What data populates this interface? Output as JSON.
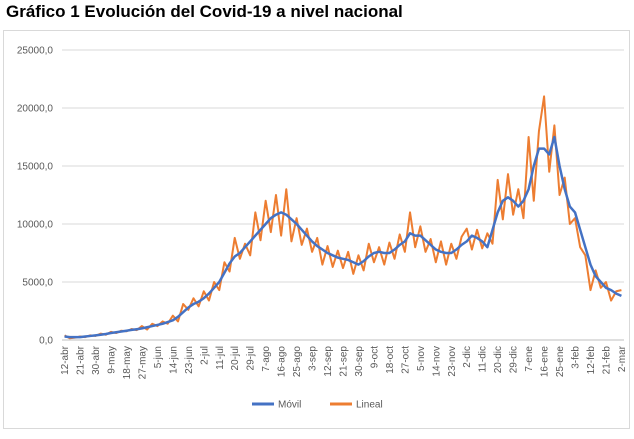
{
  "chart_data": {
    "type": "line",
    "title": "Gráfico 1 Evolución del Covid-19 a nivel nacional",
    "categories": [
      "12-abr",
      null,
      null,
      "21-abr",
      null,
      null,
      "30-abr",
      null,
      null,
      "9-may",
      null,
      null,
      "18-may",
      null,
      null,
      "27-may",
      null,
      null,
      "5-jun",
      null,
      null,
      "14-jun",
      null,
      null,
      "23-jun",
      null,
      null,
      "2-jul",
      null,
      null,
      "11-jul",
      null,
      null,
      "20-jul",
      null,
      null,
      "29-jul",
      null,
      null,
      "7-ago",
      null,
      null,
      "16-ago",
      null,
      null,
      "25-ago",
      null,
      null,
      "3-sep",
      null,
      null,
      "12-sep",
      null,
      null,
      "21-sep",
      null,
      null,
      "30-sep",
      null,
      null,
      "9-oct",
      null,
      null,
      "18-oct",
      null,
      null,
      "27-oct",
      null,
      null,
      "5-nov",
      null,
      null,
      "14-nov",
      null,
      null,
      "23-nov",
      null,
      null,
      "2-dic",
      null,
      null,
      "11-dic",
      null,
      null,
      "20-dic",
      null,
      null,
      "29-dic",
      null,
      null,
      "7-ene",
      null,
      null,
      "16-ene",
      null,
      null,
      "25-ene",
      null,
      null,
      "3-feb",
      null,
      null,
      "12-feb",
      null,
      null,
      "21-feb",
      null,
      null,
      "2-mar"
    ],
    "series": [
      {
        "name": "Móvil",
        "color": "#4472c4",
        "width": 2.5,
        "values": [
          300,
          250,
          250,
          250,
          300,
          350,
          400,
          450,
          520,
          600,
          670,
          730,
          800,
          870,
          930,
          1000,
          1100,
          1200,
          1300,
          1400,
          1550,
          1700,
          2000,
          2400,
          2800,
          3100,
          3300,
          3600,
          4000,
          4500,
          5000,
          5800,
          6600,
          7200,
          7500,
          8000,
          8500,
          9000,
          9500,
          10000,
          10500,
          10800,
          11000,
          10800,
          10400,
          10000,
          9500,
          9000,
          8500,
          8100,
          7800,
          7500,
          7300,
          7100,
          7000,
          6900,
          6700,
          6500,
          6800,
          7200,
          7500,
          7600,
          7500,
          7500,
          7800,
          8200,
          8500,
          9200,
          9000,
          9000,
          8600,
          8200,
          7800,
          7600,
          7500,
          7500,
          7800,
          8200,
          8500,
          9000,
          8800,
          8500,
          8000,
          9500,
          11000,
          12000,
          12300,
          12000,
          11500,
          12000,
          13000,
          15000,
          16500,
          16500,
          16000,
          17500,
          15000,
          13000,
          11500,
          11000,
          9500,
          8000,
          6500,
          5500,
          5000,
          4500,
          4300,
          4000,
          3800
        ]
      },
      {
        "name": "Lineal",
        "color": "#ed7d31",
        "width": 2,
        "values": [
          400,
          150,
          200,
          300,
          250,
          400,
          350,
          550,
          450,
          700,
          600,
          800,
          750,
          950,
          850,
          1200,
          900,
          1400,
          1200,
          1600,
          1400,
          2100,
          1600,
          3100,
          2600,
          3600,
          2900,
          4200,
          3400,
          5000,
          4300,
          6700,
          5900,
          8800,
          7000,
          8300,
          7300,
          11000,
          8600,
          12000,
          9300,
          12500,
          9000,
          13000,
          8500,
          10500,
          8200,
          9600,
          7600,
          8800,
          6500,
          8100,
          6300,
          7700,
          6200,
          7600,
          5700,
          7300,
          6000,
          8300,
          6700,
          8000,
          6500,
          8400,
          7000,
          9100,
          7600,
          11000,
          8000,
          9800,
          7600,
          8700,
          6700,
          8500,
          6500,
          8300,
          7000,
          8900,
          9600,
          7800,
          9500,
          7900,
          9200,
          8300,
          13800,
          10400,
          14300,
          10800,
          13000,
          10500,
          17500,
          12000,
          18000,
          21000,
          14500,
          18500,
          12500,
          14000,
          10000,
          10500,
          8000,
          7300,
          4300,
          6000,
          4500,
          5000,
          3400,
          4200,
          4300
        ]
      }
    ],
    "ylim": [
      0,
      25000
    ],
    "yticks": [
      {
        "value": 0,
        "label": "0,0"
      },
      {
        "value": 5000,
        "label": "5000,0"
      },
      {
        "value": 10000,
        "label": "10000,0"
      },
      {
        "value": 15000,
        "label": "15000,0"
      },
      {
        "value": 20000,
        "label": "20000,0"
      },
      {
        "value": 25000,
        "label": "25000,0"
      }
    ],
    "grid": true,
    "legend": "bottom"
  }
}
